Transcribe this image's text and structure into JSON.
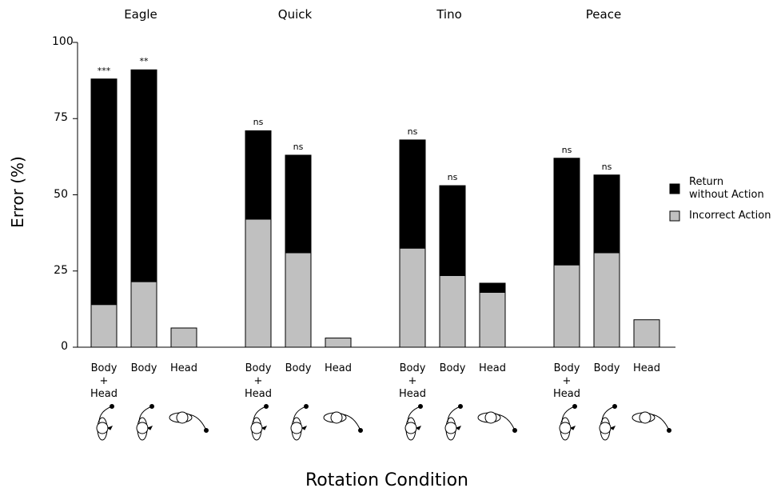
{
  "chart_data": {
    "type": "bar",
    "stacked": true,
    "groups": [
      "Eagle",
      "Quick",
      "Tino",
      "Peace"
    ],
    "categories": [
      "Body\n+\nHead",
      "Body",
      "Head",
      "Body\n+\nHead",
      "Body",
      "Head",
      "Body\n+\nHead",
      "Body",
      "Head",
      "Body\n+\nHead",
      "Body",
      "Head"
    ],
    "series": [
      {
        "name": "Incorrect Action",
        "color": "#c0c0c0",
        "values": [
          14,
          21.5,
          6.3,
          42,
          31,
          3,
          32.5,
          23.5,
          18,
          27,
          31,
          9
        ]
      },
      {
        "name": "Return\nwithout Action",
        "color": "#000000",
        "values": [
          74,
          69.5,
          0,
          29,
          32,
          0,
          35.5,
          29.5,
          3,
          35,
          25.5,
          0
        ]
      }
    ],
    "annotations": [
      "***",
      "**",
      null,
      "ns",
      "ns",
      null,
      "ns",
      "ns",
      null,
      "ns",
      "ns",
      null
    ],
    "ylabel": "Error (%)",
    "xlabel": "Rotation Condition",
    "ylim": [
      0,
      100
    ],
    "yticks": [
      0,
      25,
      50,
      75,
      100
    ],
    "legend": "right"
  }
}
